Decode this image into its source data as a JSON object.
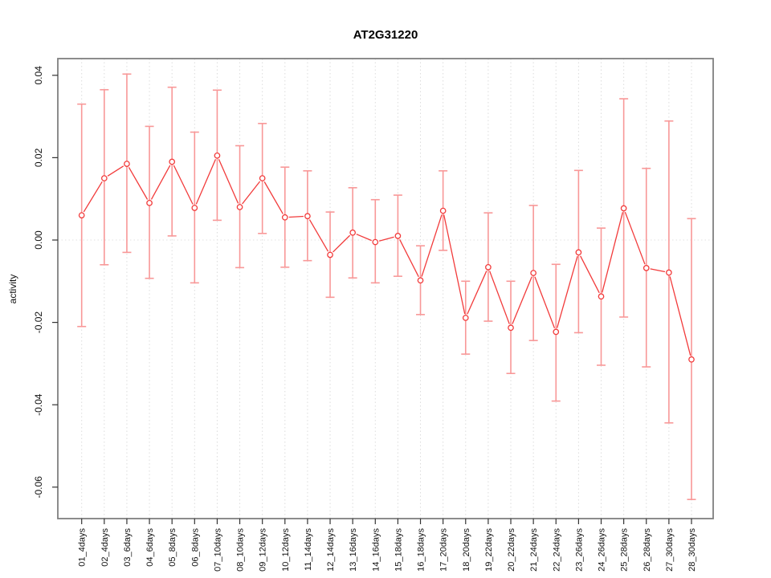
{
  "chart_data": {
    "type": "line",
    "title": "AT2G31220",
    "xlabel": "",
    "ylabel": "activity",
    "ylim": [
      -0.068,
      0.045
    ],
    "yticks": [
      "0.04",
      "0.02",
      "0.00",
      "-0.02",
      "-0.04",
      "-0.06"
    ],
    "ytick_values": [
      0.04,
      0.02,
      0.0,
      -0.02,
      -0.04,
      -0.06
    ],
    "grid": "dotted vertical gridline at each category; dotted horizontal line at y=0; full gray box border; no legend",
    "marker": "open-circle",
    "categories": [
      "01_4days",
      "02_4days",
      "03_6days",
      "04_6days",
      "05_8days",
      "06_8days",
      "07_10days",
      "08_10days",
      "09_12days",
      "10_12days",
      "11_14days",
      "12_14days",
      "13_16days",
      "14_16days",
      "15_18days",
      "16_18days",
      "17_20days",
      "18_20days",
      "19_22days",
      "20_22days",
      "21_24days",
      "22_24days",
      "23_26days",
      "24_26days",
      "25_28days",
      "26_28days",
      "27_30days",
      "28_30days"
    ],
    "series": [
      {
        "name": "activity",
        "values": [
          0.006,
          0.015,
          0.0185,
          0.009,
          0.019,
          0.0078,
          0.0205,
          0.008,
          0.015,
          0.0055,
          0.0058,
          -0.0036,
          0.0018,
          -0.0005,
          0.001,
          -0.0098,
          0.0071,
          -0.0189,
          -0.0066,
          -0.0213,
          -0.008,
          -0.0223,
          -0.003,
          -0.0137,
          0.0077,
          -0.0068,
          -0.0079,
          -0.029
        ],
        "lower": [
          -0.021,
          -0.006,
          -0.003,
          -0.0093,
          0.001,
          -0.0104,
          0.0048,
          -0.0067,
          0.0016,
          -0.0066,
          -0.005,
          -0.0139,
          -0.0092,
          -0.0104,
          -0.0088,
          -0.0181,
          -0.0025,
          -0.0277,
          -0.0197,
          -0.0324,
          -0.0244,
          -0.0391,
          -0.0225,
          -0.0304,
          -0.0187,
          -0.0308,
          -0.0444,
          -0.063
        ],
        "upper": [
          0.033,
          0.0365,
          0.0403,
          0.0276,
          0.0371,
          0.0262,
          0.0364,
          0.0229,
          0.0283,
          0.0177,
          0.0168,
          0.0068,
          0.0127,
          0.0098,
          0.0109,
          -0.0014,
          0.0168,
          -0.01,
          0.0066,
          -0.01,
          0.0084,
          -0.0059,
          0.0169,
          0.0029,
          0.0343,
          0.0174,
          0.0289,
          0.0052
        ]
      }
    ],
    "colors": {
      "line": "#f23b3b",
      "marker_stroke": "#f23b3b",
      "marker_fill": "#ffffff",
      "error_bar": "#f89898",
      "grid": "#dcdcdc",
      "zero_line": "#e2e2e2",
      "border": "#7f7f7f",
      "tick": "#333333",
      "text": "#111111",
      "background": "#ffffff"
    }
  }
}
